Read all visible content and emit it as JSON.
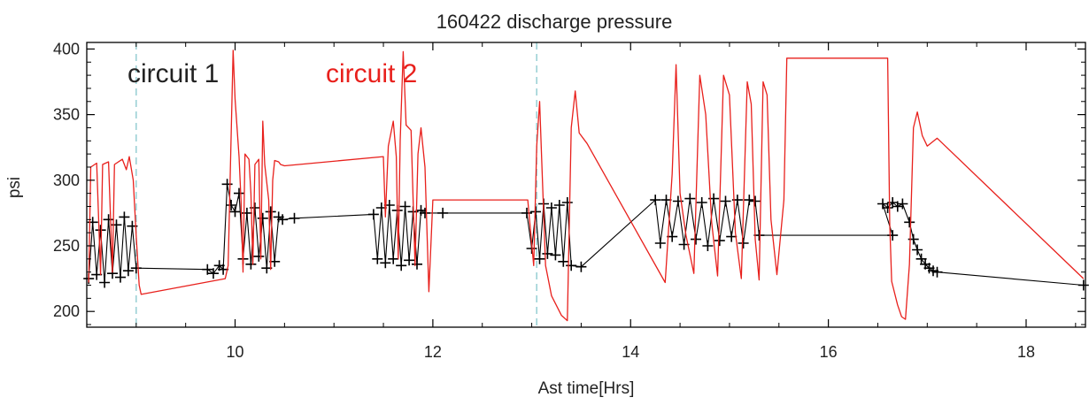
{
  "chart_data": {
    "type": "line",
    "title": "160422 discharge pressure",
    "xlabel": "Ast time[Hrs]",
    "ylabel": "psi",
    "xlim": [
      8.5,
      18.6
    ],
    "ylim": [
      188,
      405
    ],
    "x_ticks": [
      10,
      12,
      14,
      16,
      18
    ],
    "x_tick_labels": [
      "10",
      "12",
      "14",
      "16",
      "18"
    ],
    "y_ticks": [
      200,
      250,
      300,
      350,
      400
    ],
    "y_tick_labels": [
      "200",
      "250",
      "300",
      "350",
      "400"
    ],
    "grid": false,
    "vlines": [
      {
        "x": 9.0,
        "style": "dashed",
        "color": "#86c7cc"
      },
      {
        "x": 13.05,
        "style": "dashed",
        "color": "#86c7cc"
      }
    ],
    "legend": [
      {
        "label": "circuit 1",
        "color": "#222222"
      },
      {
        "label": "circuit 2",
        "color": "#e8201c"
      }
    ],
    "series": [
      {
        "name": "circuit 1",
        "color": "#000000",
        "marker": "plus",
        "points": [
          [
            8.52,
            225
          ],
          [
            8.56,
            268
          ],
          [
            8.6,
            228
          ],
          [
            8.64,
            262
          ],
          [
            8.68,
            222
          ],
          [
            8.72,
            270
          ],
          [
            8.76,
            229
          ],
          [
            8.8,
            266
          ],
          [
            8.84,
            226
          ],
          [
            8.88,
            272
          ],
          [
            8.92,
            231
          ],
          [
            8.96,
            265
          ],
          [
            9.0,
            233
          ],
          [
            9.72,
            232
          ],
          [
            9.78,
            229
          ],
          [
            9.84,
            235
          ],
          [
            9.88,
            232
          ],
          [
            9.92,
            297
          ],
          [
            9.96,
            281
          ],
          [
            10.0,
            276
          ],
          [
            10.04,
            290
          ],
          [
            10.08,
            240
          ],
          [
            10.12,
            275
          ],
          [
            10.16,
            236
          ],
          [
            10.2,
            279
          ],
          [
            10.24,
            242
          ],
          [
            10.28,
            271
          ],
          [
            10.32,
            233
          ],
          [
            10.36,
            276
          ],
          [
            10.4,
            238
          ],
          [
            10.44,
            272
          ],
          [
            10.48,
            270
          ],
          [
            10.6,
            271
          ],
          [
            11.4,
            274
          ],
          [
            11.44,
            240
          ],
          [
            11.48,
            279
          ],
          [
            11.52,
            237
          ],
          [
            11.56,
            281
          ],
          [
            11.6,
            240
          ],
          [
            11.64,
            277
          ],
          [
            11.68,
            235
          ],
          [
            11.72,
            280
          ],
          [
            11.76,
            239
          ],
          [
            11.8,
            276
          ],
          [
            11.84,
            236
          ],
          [
            11.88,
            277
          ],
          [
            11.92,
            275
          ],
          [
            12.1,
            275
          ],
          [
            12.95,
            275
          ],
          [
            13.0,
            248
          ],
          [
            13.04,
            276
          ],
          [
            13.08,
            240
          ],
          [
            13.12,
            282
          ],
          [
            13.16,
            244
          ],
          [
            13.2,
            279
          ],
          [
            13.24,
            243
          ],
          [
            13.28,
            281
          ],
          [
            13.32,
            238
          ],
          [
            13.36,
            283
          ],
          [
            13.4,
            235
          ],
          [
            13.5,
            234
          ],
          [
            14.25,
            285
          ],
          [
            14.3,
            252
          ],
          [
            14.36,
            285
          ],
          [
            14.42,
            257
          ],
          [
            14.48,
            284
          ],
          [
            14.54,
            251
          ],
          [
            14.6,
            286
          ],
          [
            14.66,
            255
          ],
          [
            14.72,
            283
          ],
          [
            14.78,
            250
          ],
          [
            14.84,
            286
          ],
          [
            14.9,
            254
          ],
          [
            14.96,
            284
          ],
          [
            15.02,
            257
          ],
          [
            15.08,
            285
          ],
          [
            15.14,
            252
          ],
          [
            15.2,
            285
          ],
          [
            15.26,
            284
          ],
          [
            15.3,
            258
          ],
          [
            16.65,
            258
          ],
          [
            16.55,
            282
          ],
          [
            16.6,
            279
          ],
          [
            16.65,
            283
          ],
          [
            16.7,
            280
          ],
          [
            16.75,
            282
          ],
          [
            16.82,
            268
          ],
          [
            16.86,
            255
          ],
          [
            16.9,
            247
          ],
          [
            16.94,
            240
          ],
          [
            16.98,
            236
          ],
          [
            17.02,
            233
          ],
          [
            17.06,
            231
          ],
          [
            17.1,
            230
          ],
          [
            18.58,
            220
          ]
        ]
      },
      {
        "name": "circuit 2",
        "color": "#e8201c",
        "points": [
          [
            8.52,
            222
          ],
          [
            8.54,
            310
          ],
          [
            8.6,
            313
          ],
          [
            8.64,
            228
          ],
          [
            8.66,
            312
          ],
          [
            8.72,
            314
          ],
          [
            8.76,
            230
          ],
          [
            8.78,
            312
          ],
          [
            8.86,
            316
          ],
          [
            8.9,
            308
          ],
          [
            8.93,
            318
          ],
          [
            8.97,
            300
          ],
          [
            9.0,
            258
          ],
          [
            9.03,
            220
          ],
          [
            9.05,
            213
          ],
          [
            9.9,
            225
          ],
          [
            9.93,
            235
          ],
          [
            9.95,
            300
          ],
          [
            9.98,
            399
          ],
          [
            10.0,
            362
          ],
          [
            10.04,
            318
          ],
          [
            10.06,
            285
          ],
          [
            10.08,
            230
          ],
          [
            10.1,
            320
          ],
          [
            10.14,
            316
          ],
          [
            10.16,
            290
          ],
          [
            10.18,
            236
          ],
          [
            10.2,
            312
          ],
          [
            10.24,
            316
          ],
          [
            10.26,
            240
          ],
          [
            10.28,
            345
          ],
          [
            10.3,
            312
          ],
          [
            10.34,
            285
          ],
          [
            10.36,
            232
          ],
          [
            10.38,
            300
          ],
          [
            10.4,
            315
          ],
          [
            10.44,
            314
          ],
          [
            10.46,
            312
          ],
          [
            10.5,
            311
          ],
          [
            11.5,
            318
          ],
          [
            11.52,
            272
          ],
          [
            11.55,
            326
          ],
          [
            11.6,
            345
          ],
          [
            11.63,
            318
          ],
          [
            11.65,
            240
          ],
          [
            11.67,
            330
          ],
          [
            11.7,
            398
          ],
          [
            11.73,
            342
          ],
          [
            11.78,
            338
          ],
          [
            11.82,
            235
          ],
          [
            11.85,
            320
          ],
          [
            11.88,
            340
          ],
          [
            11.92,
            310
          ],
          [
            11.96,
            215
          ],
          [
            12.0,
            285
          ],
          [
            12.96,
            285
          ],
          [
            13.02,
            235
          ],
          [
            13.05,
            326
          ],
          [
            13.08,
            360
          ],
          [
            13.1,
            318
          ],
          [
            13.14,
            235
          ],
          [
            13.2,
            212
          ],
          [
            13.3,
            197
          ],
          [
            13.36,
            193
          ],
          [
            13.4,
            340
          ],
          [
            13.44,
            368
          ],
          [
            13.48,
            336
          ],
          [
            13.56,
            328
          ],
          [
            14.35,
            222
          ],
          [
            14.42,
            305
          ],
          [
            14.46,
            388
          ],
          [
            14.5,
            290
          ],
          [
            14.56,
            258
          ],
          [
            14.64,
            229
          ],
          [
            14.7,
            380
          ],
          [
            14.76,
            350
          ],
          [
            14.82,
            268
          ],
          [
            14.88,
            227
          ],
          [
            14.94,
            380
          ],
          [
            15.0,
            365
          ],
          [
            15.06,
            260
          ],
          [
            15.12,
            225
          ],
          [
            15.18,
            375
          ],
          [
            15.22,
            358
          ],
          [
            15.26,
            255
          ],
          [
            15.3,
            224
          ],
          [
            15.34,
            375
          ],
          [
            15.38,
            365
          ],
          [
            15.42,
            270
          ],
          [
            15.48,
            228
          ],
          [
            15.55,
            285
          ],
          [
            15.58,
            393
          ],
          [
            16.6,
            393
          ],
          [
            16.62,
            268
          ],
          [
            16.64,
            223
          ],
          [
            16.7,
            205
          ],
          [
            16.74,
            196
          ],
          [
            16.78,
            194
          ],
          [
            16.82,
            236
          ],
          [
            16.86,
            340
          ],
          [
            16.9,
            352
          ],
          [
            16.95,
            334
          ],
          [
            17.0,
            326
          ],
          [
            17.1,
            332
          ],
          [
            18.58,
            225
          ]
        ]
      }
    ]
  }
}
